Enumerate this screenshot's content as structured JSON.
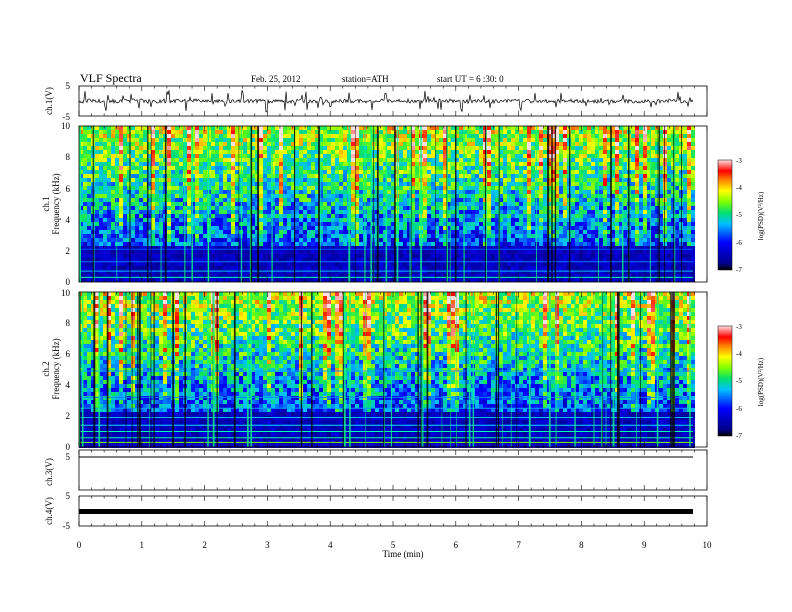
{
  "header": {
    "title": "VLF  Spectra",
    "date": "Feb. 25, 2012",
    "station": "station=ATH",
    "start": "start  UT  =   6  :30: 0"
  },
  "chart_data": [
    {
      "type": "line",
      "name": "ch1-waveform",
      "ylabel": "ch.1(V)",
      "ylim": [
        -5,
        5
      ],
      "yticks": [
        "5",
        "-5"
      ],
      "xlim": [
        0,
        10
      ],
      "baseline": 0,
      "color": "#000000"
    },
    {
      "type": "heatmap",
      "name": "ch1-spectrogram",
      "ylabel_channel": "ch.1",
      "ylabel": "Frequency  (kHz)",
      "ylim": [
        0,
        10
      ],
      "yticks": [
        "0",
        "2",
        "4",
        "6",
        "8",
        "10"
      ],
      "xlim": [
        0,
        10
      ],
      "colorbar": {
        "label": "log(PSD)(V²/Hz)",
        "range": [
          -7,
          -3
        ],
        "ticks": [
          "-3",
          "-4",
          "-5",
          "-6",
          "-7"
        ]
      }
    },
    {
      "type": "heatmap",
      "name": "ch2-spectrogram",
      "ylabel_channel": "ch.2",
      "ylabel": "Frequency  (kHz)",
      "ylim": [
        0,
        10
      ],
      "yticks": [
        "0",
        "2",
        "4",
        "6",
        "8",
        "10"
      ],
      "xlim": [
        0,
        10
      ],
      "colorbar": {
        "label": "log(PSD)(V²/Hz)",
        "range": [
          -7,
          -3
        ],
        "ticks": [
          "-3",
          "-4",
          "-5",
          "-6",
          "-7"
        ]
      }
    },
    {
      "type": "line",
      "name": "ch3-waveform",
      "ylabel": "ch.3(V)",
      "ylim": [
        -5,
        5
      ],
      "yticks": [
        "5"
      ],
      "xlim": [
        0,
        10
      ],
      "baseline": 0,
      "color": "#000000"
    },
    {
      "type": "line",
      "name": "ch4-waveform",
      "ylabel": "ch.4(V)",
      "ylim": [
        -5,
        5
      ],
      "yticks": [
        "5",
        "-5"
      ],
      "xlim": [
        0,
        10
      ],
      "baseline": 0,
      "color": "#000000"
    }
  ],
  "xaxis": {
    "label": "Time  (min)",
    "ticks": [
      "0",
      "1",
      "2",
      "3",
      "4",
      "5",
      "6",
      "7",
      "8",
      "9",
      "10"
    ]
  }
}
